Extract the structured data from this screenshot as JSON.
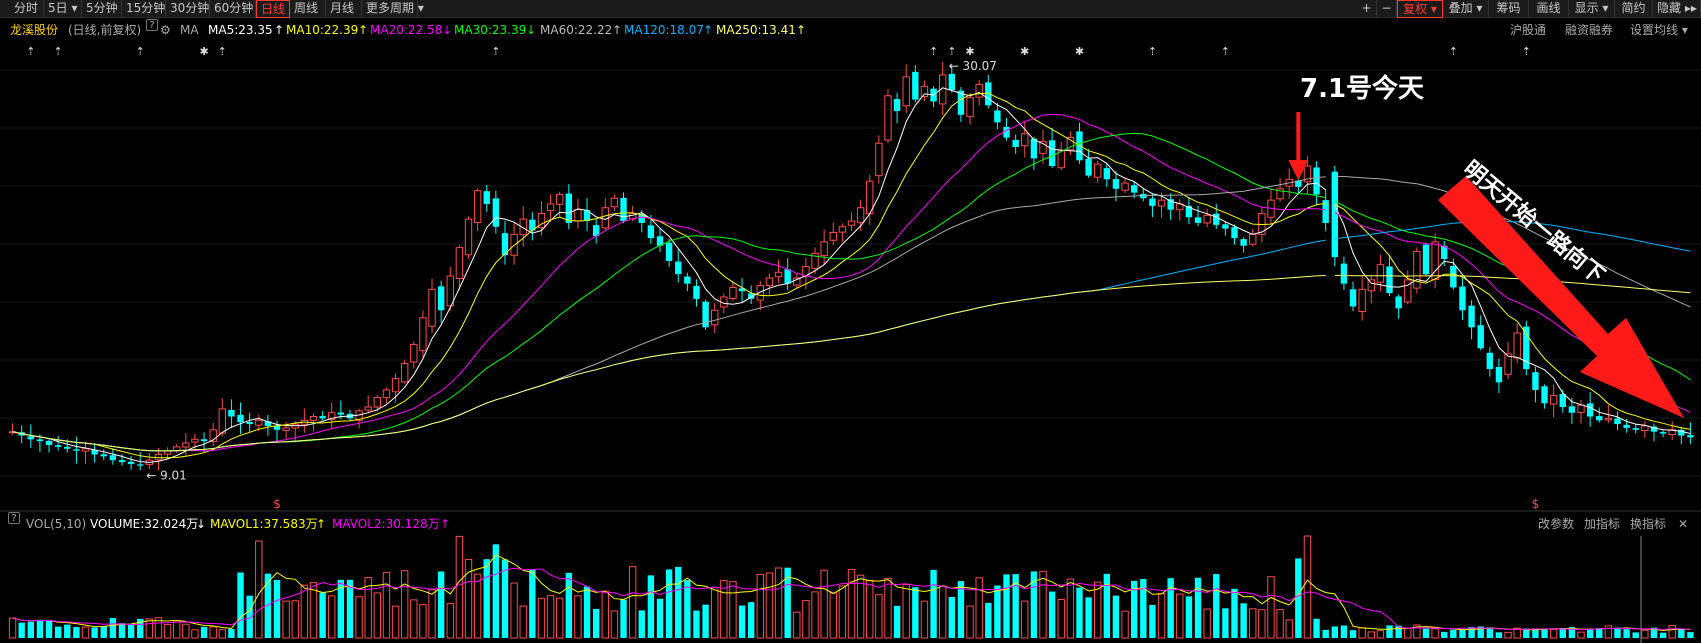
{
  "toolbar": {
    "left": [
      "分时",
      "5日 ▾",
      "5分钟",
      "15分钟",
      "30分钟",
      "60分钟",
      "日线",
      "周线",
      "月线",
      "更多周期 ▾"
    ],
    "active": "日线",
    "right": [
      "+",
      "−",
      "复权 ▾",
      "叠加 ▾",
      "筹码",
      "画线",
      "显示 ▾",
      "简约",
      "隐藏 ▸▸"
    ],
    "right_active": "复权 ▾"
  },
  "info": {
    "stock": "龙溪股份",
    "mode": "(日线,前复权)",
    "q": "?",
    "ma": "MA",
    "ma5": "MA5:23.35",
    "ma5_arrow": "↑",
    "ma10": "MA10:22.39",
    "ma10_arrow": "↑",
    "ma20": "MA20:22.58",
    "ma20_arrow": "↓",
    "ma30": "MA30:23.39",
    "ma30_arrow": "↓",
    "ma60": "MA60:22.22",
    "ma60_arrow": "↑",
    "ma120": "MA120:18.07",
    "ma120_arrow": "↑",
    "ma250": "MA250:13.41",
    "ma250_arrow": "↑",
    "links": [
      "沪股通",
      "融资融券",
      "设置均线 ▾"
    ]
  },
  "vol_info": {
    "q": "?",
    "name": "VOL(5,10)",
    "volume": "VOLUME:32.024万",
    "volume_arrow": "↓",
    "mavol1": "MAVOL1:37.583万",
    "mavol1_arrow": "↑",
    "mavol2": "MAVOL2:30.128万",
    "mavol2_arrow": "↑",
    "links": [
      "改参数",
      "加指标",
      "换指标",
      "✕"
    ]
  },
  "colors": {
    "up": "#ff4a4a",
    "down": "#00ffff",
    "ma5": "#ffffff",
    "ma10": "#ffff00",
    "ma20": "#ff00ff",
    "ma30": "#00ff00",
    "ma60": "#aaaaaa",
    "ma120": "#00b4ff",
    "ma250": "#ffff66",
    "background": "#000000"
  },
  "annotations": {
    "today": "7.1号今天",
    "down": "明天开始一路向下",
    "high": "30.07",
    "low": "9.01",
    "marker": "$"
  },
  "chart_data": {
    "type": "candlestick",
    "close": [
      10.8,
      10.6,
      10.4,
      10.3,
      10.1,
      10.0,
      9.9,
      9.8,
      9.9,
      9.6,
      9.5,
      9.3,
      9.2,
      9.1,
      9.01,
      9.3,
      9.6,
      9.8,
      10.0,
      10.2,
      10.4,
      10.3,
      10.9,
      12.0,
      11.6,
      11.3,
      11.2,
      11.4,
      11.1,
      10.9,
      11.0,
      11.2,
      11.4,
      11.6,
      11.5,
      11.8,
      11.7,
      11.5,
      11.9,
      12.1,
      12.6,
      13.0,
      13.6,
      14.4,
      15.4,
      16.8,
      18.3,
      17.2,
      19.0,
      20.5,
      22.0,
      23.5,
      22.8,
      21.6,
      20.1,
      21.2,
      22.0,
      21.4,
      22.3,
      22.8,
      23.3,
      21.8,
      22.5,
      21.9,
      21.1,
      22.6,
      23.1,
      21.9,
      22.3,
      21.8,
      21.0,
      20.6,
      19.8,
      19.1,
      18.6,
      17.8,
      16.3,
      17.2,
      17.9,
      18.4,
      18.2,
      17.8,
      18.5,
      18.9,
      19.2,
      18.6,
      18.9,
      19.5,
      20.2,
      20.8,
      21.3,
      21.6,
      21.9,
      22.6,
      24.0,
      26.0,
      28.5,
      27.7,
      29.5,
      28.3,
      29.0,
      28.2,
      29.6,
      28.8,
      27.5,
      28.4,
      29.1,
      28.0,
      27.1,
      26.3,
      25.8,
      26.5,
      25.2,
      26.1,
      24.8,
      25.6,
      26.3,
      25.1,
      24.3,
      24.9,
      24.1,
      23.6,
      23.9,
      23.4,
      23.1,
      22.7,
      23.0,
      22.5,
      22.8,
      22.1,
      21.8,
      22.2,
      21.7,
      21.5,
      21.0,
      20.6,
      21.2,
      22.3,
      23.0,
      23.6,
      24.1,
      23.7,
      24.8,
      23.3,
      21.8,
      20.0,
      18.6,
      17.4,
      18.3,
      18.8,
      19.6,
      18.1,
      17.3,
      18.8,
      20.3,
      19.1,
      20.8,
      19.9,
      18.4,
      17.2,
      16.3,
      15.2,
      14.1,
      13.4,
      14.9,
      16.0,
      14.1,
      13.0,
      12.3,
      12.7,
      12.1,
      11.8,
      12.2,
      11.6,
      11.4,
      11.5,
      11.2,
      11.0,
      10.9,
      11.1,
      10.8,
      10.7,
      10.9,
      10.6,
      10.5
    ],
    "ylabel": "",
    "ma": {
      "MA5": 23.35,
      "MA10": 22.39,
      "MA20": 22.58,
      "MA30": 23.39,
      "MA60": 22.22,
      "MA120": 18.07,
      "MA250": 13.41
    },
    "high": 30.07,
    "low": 9.01,
    "volume_last": "32.024万",
    "mavol1_last": "37.583万",
    "mavol2_last": "30.128万"
  }
}
